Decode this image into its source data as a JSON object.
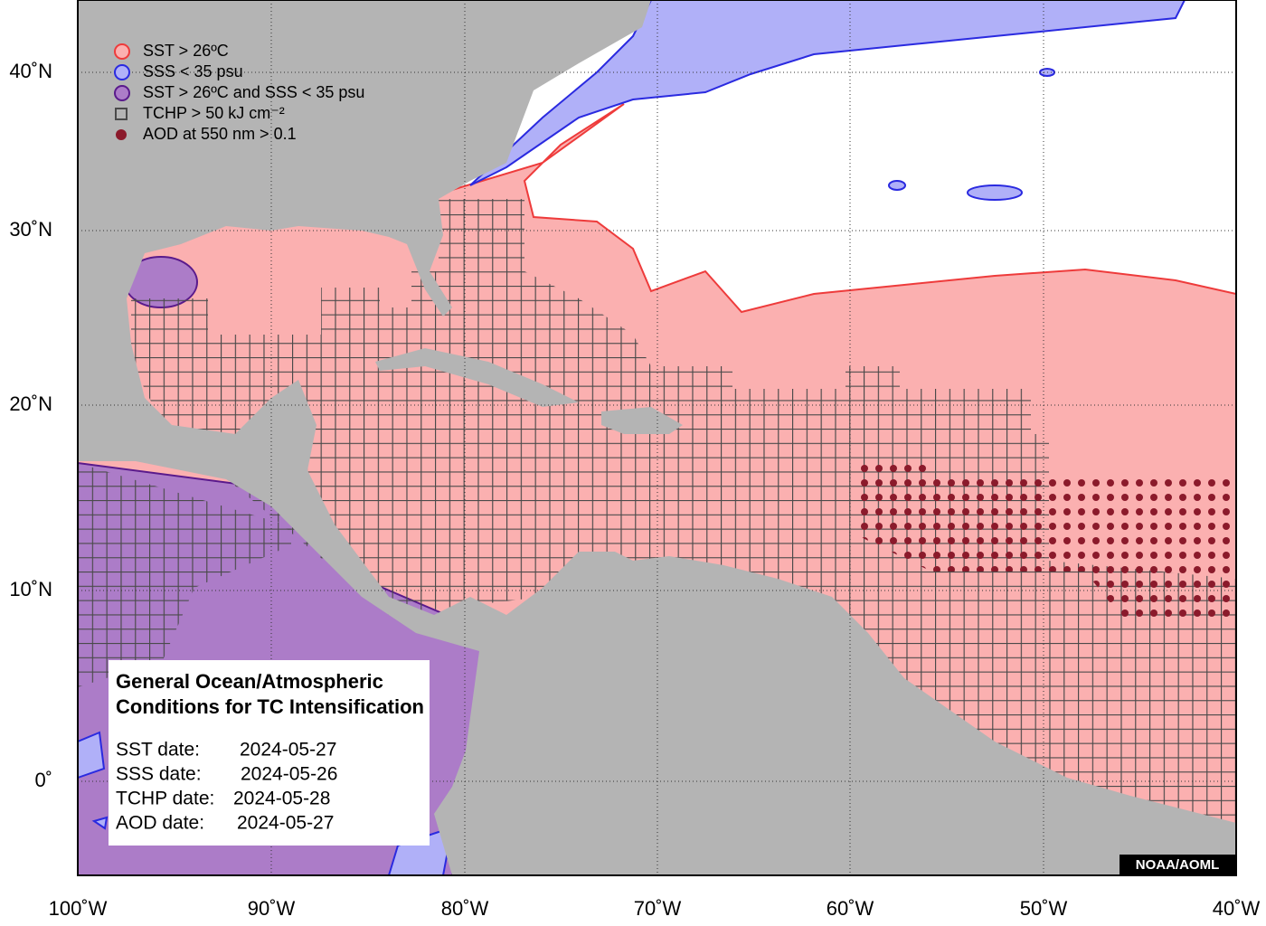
{
  "legend": [
    "SST > 26ºC",
    "SSS < 35 psu",
    "SST > 26ºC and SSS < 35 psu",
    "TCHP > 50 kJ cm⁻²",
    "AOD at 550 nm > 0.1"
  ],
  "lon_labels": [
    "100˚W",
    "90˚W",
    "80˚W",
    "70˚W",
    "60˚W",
    "50˚W",
    "40˚W"
  ],
  "lat_labels": [
    "40˚N",
    "30˚N",
    "20˚N",
    "10˚N",
    "0˚"
  ],
  "info_box": {
    "title_lines": [
      "General Ocean/Atmospheric",
      "Conditions for TC Intensification"
    ],
    "dates": [
      [
        "SST date:",
        "2024-05-27"
      ],
      [
        "SSS date:",
        "2024-05-26"
      ],
      [
        "TCHP date:",
        "2024-05-28"
      ],
      [
        "AOD date:",
        "2024-05-27"
      ]
    ]
  },
  "credit": "NOAA/AOML"
}
